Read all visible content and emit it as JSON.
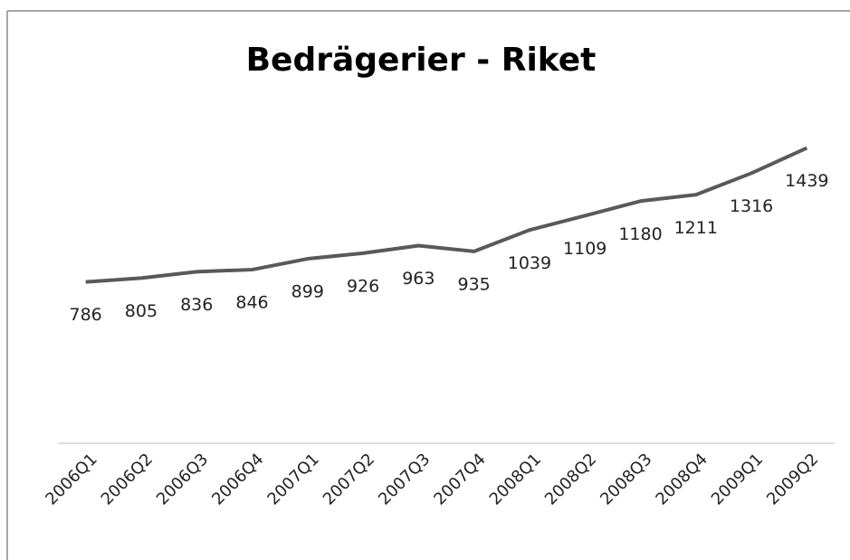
{
  "chart_data": {
    "type": "line",
    "title": "Bedrägerier - Riket",
    "categories": [
      "2006Q1",
      "2006Q2",
      "2006Q3",
      "2006Q4",
      "2007Q1",
      "2007Q2",
      "2007Q3",
      "2007Q4",
      "2008Q1",
      "2008Q2",
      "2008Q3",
      "2008Q4",
      "2009Q1",
      "2009Q2"
    ],
    "values": [
      786,
      805,
      836,
      846,
      899,
      926,
      963,
      935,
      1039,
      1109,
      1180,
      1211,
      1316,
      1439
    ],
    "color": "#595959",
    "ylim": [
      0,
      1600
    ]
  }
}
